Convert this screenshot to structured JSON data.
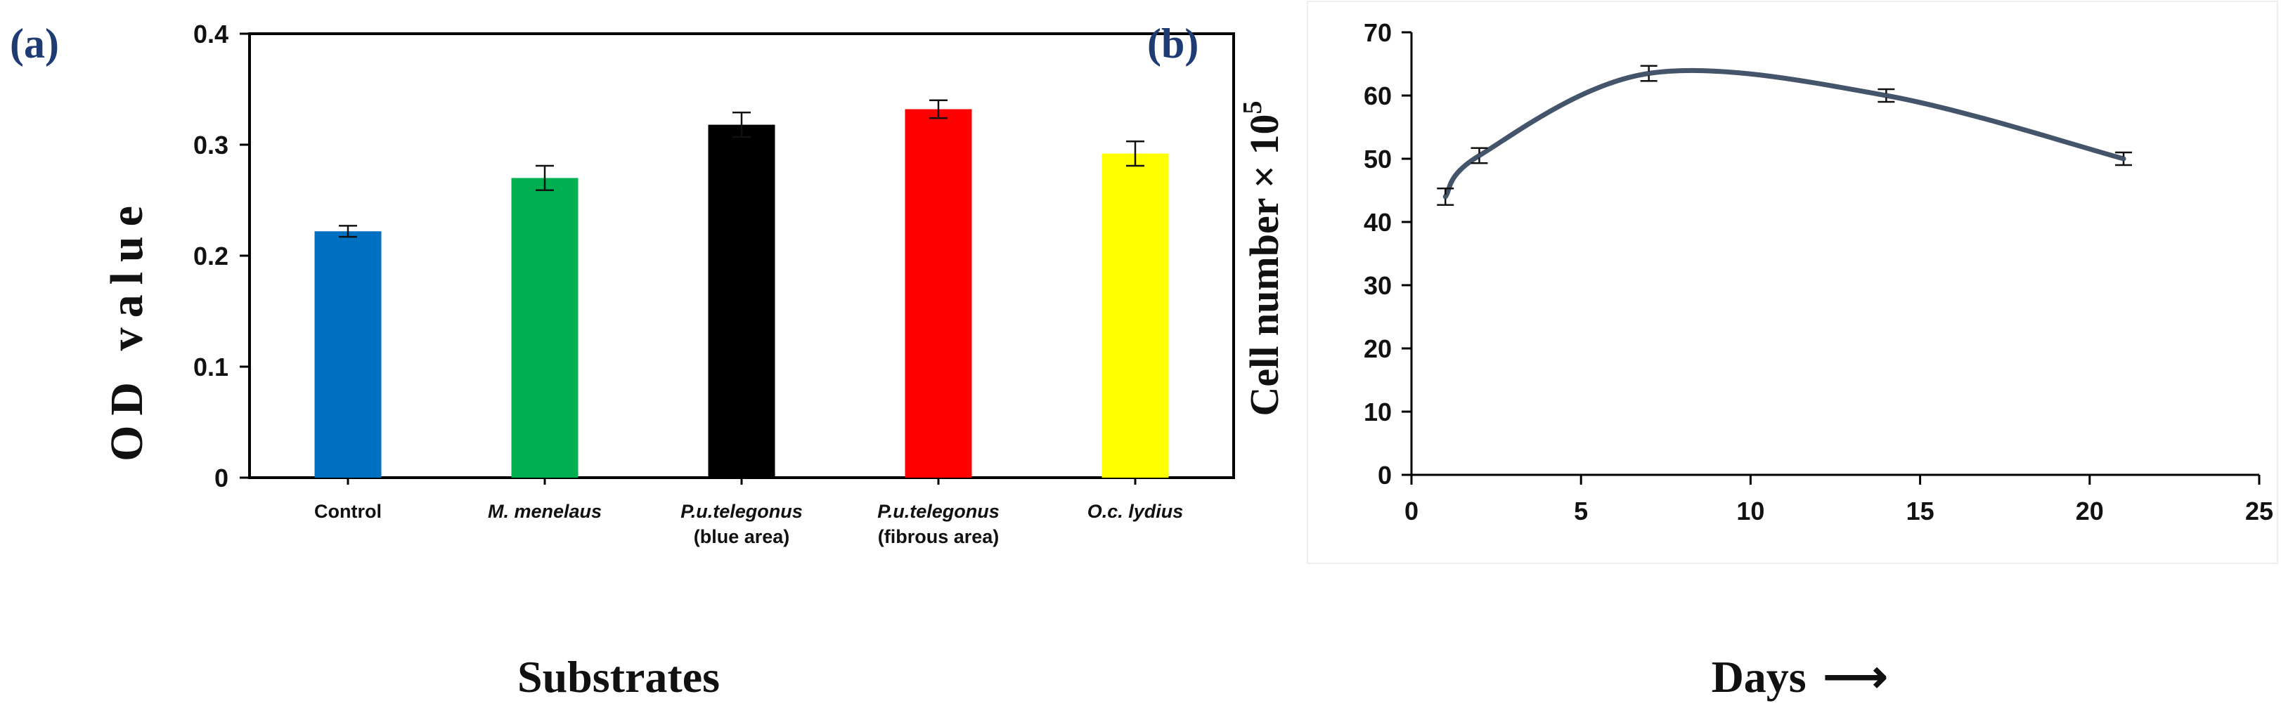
{
  "chart_data": [
    {
      "type": "bar",
      "panel_label": "(a)",
      "title": "",
      "xlabel": "Substrates",
      "ylabel": "OD value",
      "ylim": [
        0,
        0.4
      ],
      "yticks": [
        "0",
        "0.1",
        "0.2",
        "0.3",
        "0.4"
      ],
      "grid": false,
      "categories": [
        {
          "line1": "Control",
          "line2": "",
          "italic": false
        },
        {
          "line1": "M. menelaus",
          "line2": "",
          "italic": true
        },
        {
          "line1": "P.u.telegonus",
          "line2": "(blue area)",
          "italic": true
        },
        {
          "line1": "P.u.telegonus",
          "line2": "(fibrous area)",
          "italic": true
        },
        {
          "line1": "O.c. lydius",
          "line2": "",
          "italic": true
        }
      ],
      "values": [
        0.222,
        0.27,
        0.318,
        0.332,
        0.292
      ],
      "errors": [
        0.005,
        0.011,
        0.011,
        0.008,
        0.011
      ],
      "colors": [
        "#0070c0",
        "#00b050",
        "#000000",
        "#ff0000",
        "#ffff00"
      ]
    },
    {
      "type": "line",
      "panel_label": "(b)",
      "title": "",
      "xlabel": "Days",
      "xlabel_arrow": "⟶",
      "ylabel": "Cell number × 10",
      "ylabel_superscript": "5",
      "xlim": [
        0,
        25
      ],
      "ylim": [
        0,
        70
      ],
      "xticks": [
        "0",
        "5",
        "10",
        "15",
        "20",
        "25"
      ],
      "yticks": [
        "0",
        "10",
        "20",
        "30",
        "40",
        "50",
        "60",
        "70"
      ],
      "grid": false,
      "series": [
        {
          "name": "Cell number",
          "color": "#44546a",
          "x": [
            1,
            2,
            7,
            14,
            21
          ],
          "y": [
            44,
            50.5,
            63.5,
            60,
            50
          ],
          "errors": [
            1.3,
            1.2,
            1.2,
            1.0,
            1.0
          ]
        }
      ]
    }
  ]
}
